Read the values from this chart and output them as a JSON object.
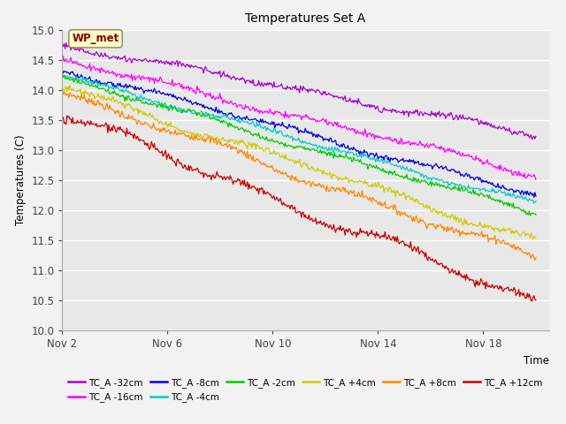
{
  "title": "Temperatures Set A",
  "ylabel": "Temperatures (C)",
  "xlabel": "Time",
  "ylim": [
    10.0,
    15.0
  ],
  "yticks": [
    10.0,
    10.5,
    11.0,
    11.5,
    12.0,
    12.5,
    13.0,
    13.5,
    14.0,
    14.5,
    15.0
  ],
  "x_tick_positions": [
    0,
    4,
    8,
    12,
    16
  ],
  "x_ticks": [
    "Nov 2",
    "Nov 6",
    "Nov 10",
    "Nov 14",
    "Nov 18"
  ],
  "xlim": [
    0,
    18.5
  ],
  "series": [
    {
      "label": "TC_A -32cm",
      "color": "#aa00cc",
      "start": 14.75,
      "end": 13.25,
      "noise": 0.025,
      "lf_amp": 0.04,
      "seed": 1
    },
    {
      "label": "TC_A -16cm",
      "color": "#ff00ff",
      "start": 14.5,
      "end": 12.6,
      "noise": 0.025,
      "lf_amp": 0.04,
      "seed": 2
    },
    {
      "label": "TC_A -8cm",
      "color": "#0000dd",
      "start": 14.35,
      "end": 12.25,
      "noise": 0.022,
      "lf_amp": 0.035,
      "seed": 3
    },
    {
      "label": "TC_A -4cm",
      "color": "#00cccc",
      "start": 14.25,
      "end": 12.1,
      "noise": 0.022,
      "lf_amp": 0.035,
      "seed": 4
    },
    {
      "label": "TC_A -2cm",
      "color": "#00cc00",
      "start": 14.2,
      "end": 11.95,
      "noise": 0.022,
      "lf_amp": 0.035,
      "seed": 5
    },
    {
      "label": "TC_A +4cm",
      "color": "#cccc00",
      "start": 14.05,
      "end": 11.5,
      "noise": 0.028,
      "lf_amp": 0.05,
      "seed": 6
    },
    {
      "label": "TC_A +8cm",
      "color": "#ff8800",
      "start": 13.95,
      "end": 11.2,
      "noise": 0.03,
      "lf_amp": 0.06,
      "seed": 7
    },
    {
      "label": "TC_A +12cm",
      "color": "#cc0000",
      "start": 13.6,
      "end": 10.47,
      "noise": 0.032,
      "lf_amp": 0.08,
      "seed": 8
    }
  ],
  "annotation_label": "WP_met",
  "fig_bg": "#f2f2f2",
  "plot_bg": "#e8e8e8",
  "legend_colors": [
    "#aa00cc",
    "#ff00ff",
    "#0000dd",
    "#00cccc",
    "#00cc00",
    "#cccc00",
    "#ff8800",
    "#cc0000"
  ],
  "legend_labels": [
    "TC_A -32cm",
    "TC_A -16cm",
    "TC_A -8cm",
    "TC_A -4cm",
    "TC_A -2cm",
    "TC_A +4cm",
    "TC_A +8cm",
    "TC_A +12cm"
  ],
  "legend_ncol_row1": 6,
  "legend_ncol_row2": 2
}
